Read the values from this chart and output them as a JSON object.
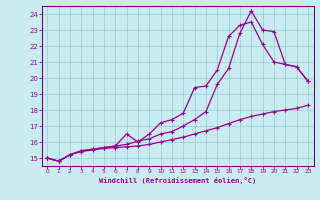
{
  "xlabel": "Windchill (Refroidissement éolien,°C)",
  "bg_color": "#c8ecf0",
  "grid_color": "#96ccd8",
  "line_color": "#990099",
  "spine_color": "#800080",
  "xlim": [
    -0.5,
    23.5
  ],
  "ylim": [
    14.5,
    24.5
  ],
  "xticks": [
    0,
    1,
    2,
    3,
    4,
    5,
    6,
    7,
    8,
    9,
    10,
    11,
    12,
    13,
    14,
    15,
    16,
    17,
    18,
    19,
    20,
    21,
    22,
    23
  ],
  "yticks": [
    15,
    16,
    17,
    18,
    19,
    20,
    21,
    22,
    23,
    24
  ],
  "line1_x": [
    0,
    1,
    2,
    3,
    4,
    5,
    6,
    7,
    8,
    9,
    10,
    11,
    12,
    13,
    14,
    15,
    16,
    17,
    18,
    19,
    20,
    21,
    22,
    23
  ],
  "line1_y": [
    15.0,
    14.8,
    15.2,
    15.4,
    15.5,
    15.6,
    15.65,
    15.7,
    15.75,
    15.85,
    16.0,
    16.15,
    16.3,
    16.5,
    16.7,
    16.9,
    17.15,
    17.4,
    17.6,
    17.75,
    17.9,
    18.0,
    18.1,
    18.3
  ],
  "line2_x": [
    0,
    1,
    2,
    3,
    4,
    5,
    6,
    7,
    8,
    9,
    10,
    11,
    12,
    13,
    14,
    15,
    16,
    17,
    18,
    19,
    20,
    21,
    22,
    23
  ],
  "line2_y": [
    15.0,
    14.8,
    15.2,
    15.45,
    15.55,
    15.65,
    15.75,
    15.85,
    16.05,
    16.2,
    16.5,
    16.65,
    17.0,
    17.4,
    17.9,
    19.6,
    20.6,
    22.8,
    24.2,
    23.0,
    22.9,
    20.85,
    20.7,
    19.8
  ],
  "line3_x": [
    0,
    1,
    2,
    3,
    4,
    5,
    6,
    7,
    8,
    9,
    10,
    11,
    12,
    13,
    14,
    15,
    16,
    17,
    18,
    19,
    20,
    21,
    22,
    23
  ],
  "line3_y": [
    15.0,
    14.8,
    15.2,
    15.45,
    15.55,
    15.65,
    15.75,
    16.5,
    16.0,
    16.5,
    17.2,
    17.4,
    17.8,
    19.4,
    19.5,
    20.5,
    22.6,
    23.3,
    23.5,
    22.1,
    21.0,
    20.85,
    20.7,
    19.8
  ]
}
